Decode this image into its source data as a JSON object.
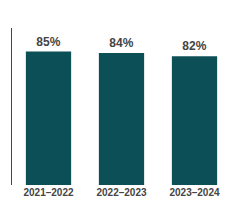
{
  "chart_data": {
    "type": "bar",
    "categories": [
      "2021–2022",
      "2022–2023",
      "2023–2024"
    ],
    "values": [
      85,
      84,
      82
    ],
    "value_labels": [
      "85%",
      "84%",
      "82%"
    ],
    "data_labels": true,
    "color": "#0d4f57",
    "ylim": [
      0,
      100
    ],
    "grid": false,
    "tick_labels": "x"
  }
}
